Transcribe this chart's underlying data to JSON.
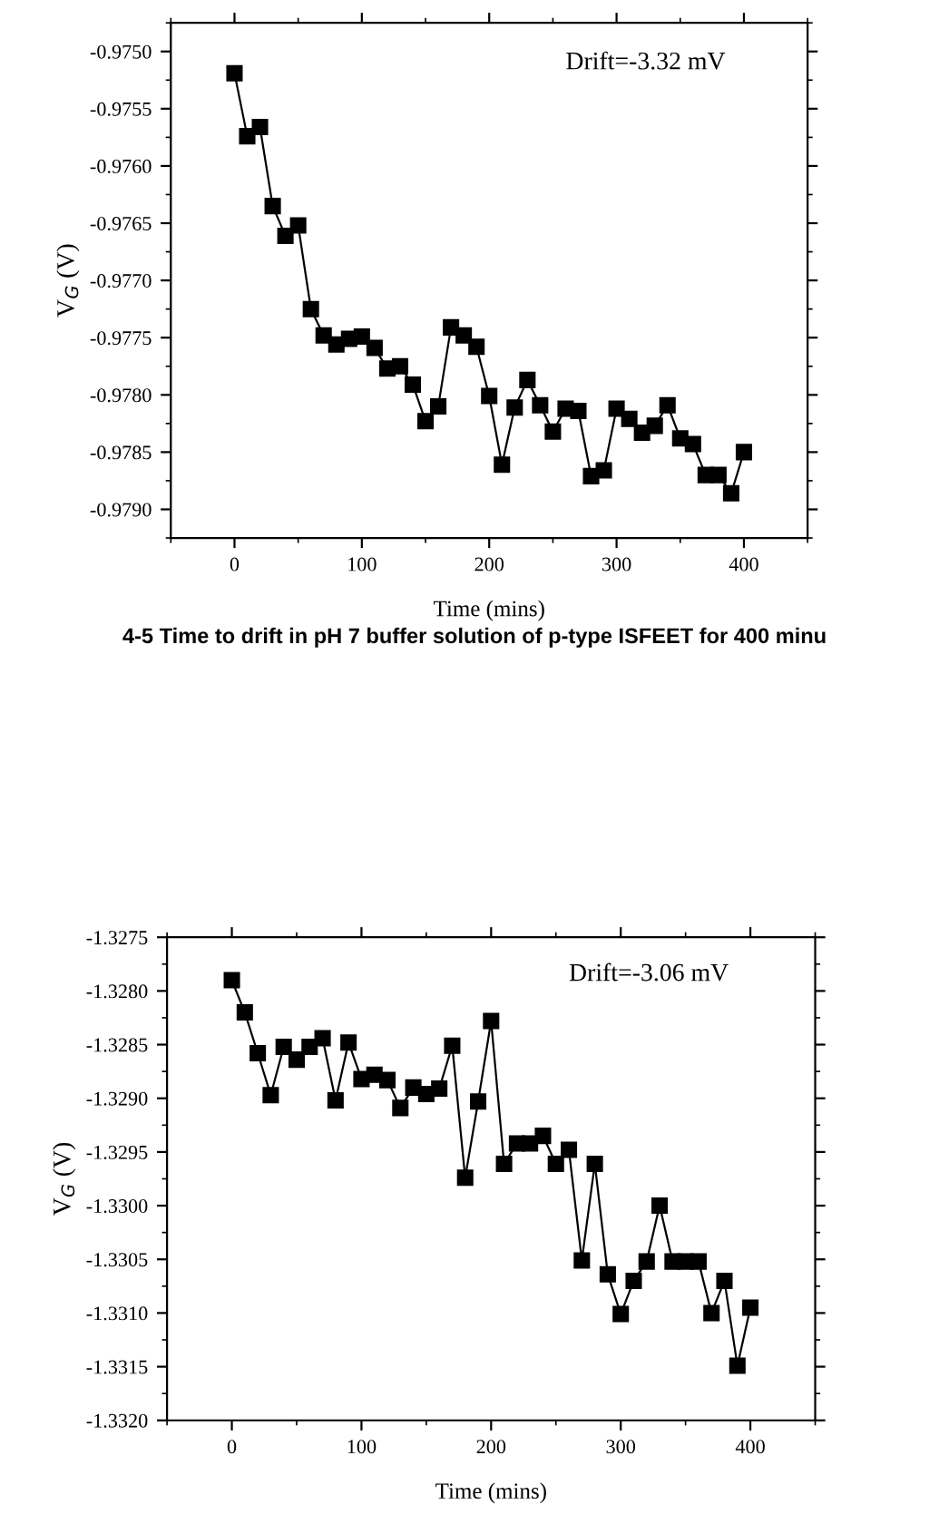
{
  "chart_data": [
    {
      "type": "line",
      "xlabel": "Time (mins)",
      "ylabel": "V$_{G}$ (V)",
      "marker": "square",
      "line_style": "solid",
      "grid": false,
      "legend": false,
      "x": [
        0,
        10,
        20,
        30,
        40,
        50,
        60,
        70,
        80,
        90,
        100,
        110,
        120,
        130,
        140,
        150,
        160,
        170,
        180,
        190,
        200,
        210,
        220,
        230,
        240,
        250,
        260,
        270,
        280,
        290,
        300,
        310,
        320,
        330,
        340,
        350,
        360,
        370,
        380,
        390,
        400
      ],
      "series": [
        {
          "color": "#000000",
          "values": [
            -0.97519,
            -0.97574,
            -0.97566,
            -0.97635,
            -0.97661,
            -0.97652,
            -0.97725,
            -0.97748,
            -0.97756,
            -0.97751,
            -0.97749,
            -0.97759,
            -0.97777,
            -0.97775,
            -0.97791,
            -0.97823,
            -0.9781,
            -0.97741,
            -0.97748,
            -0.97758,
            -0.97801,
            -0.97861,
            -0.97811,
            -0.97787,
            -0.97809,
            -0.97832,
            -0.97812,
            -0.97814,
            -0.97871,
            -0.97866,
            -0.97812,
            -0.97821,
            -0.97833,
            -0.97827,
            -0.97809,
            -0.97838,
            -0.97843,
            -0.9787,
            -0.9787,
            -0.97886,
            -0.9785
          ]
        }
      ],
      "xlim": [
        -50,
        450
      ],
      "xticks": [
        0,
        100,
        200,
        300,
        400
      ],
      "ylim": [
        -0.97925,
        -0.97475
      ],
      "yticks": [
        {
          "value": -0.975,
          "label": "-0.9750"
        },
        {
          "value": -0.9755,
          "label": "-0.9755"
        },
        {
          "value": -0.976,
          "label": "-0.9760"
        },
        {
          "value": -0.9765,
          "label": "-0.9765"
        },
        {
          "value": -0.977,
          "label": "-0.9770"
        },
        {
          "value": -0.9775,
          "label": "-0.9775"
        },
        {
          "value": -0.978,
          "label": "-0.9780"
        },
        {
          "value": -0.9785,
          "label": "-0.9785"
        },
        {
          "value": -0.979,
          "label": "-0.9790"
        }
      ],
      "annotations": [
        "Drift=-3.32 mV",
        "4-5 Time to drift in pH 7 buffer solution of p-type ISFEET for 400 minu"
      ]
    },
    {
      "type": "line",
      "xlabel": "Time (mins)",
      "ylabel": "V$_{G}$ (V)",
      "marker": "square",
      "line_style": "solid",
      "grid": false,
      "legend": false,
      "x": [
        0,
        10,
        20,
        30,
        40,
        50,
        60,
        70,
        80,
        90,
        100,
        110,
        120,
        130,
        140,
        150,
        160,
        170,
        180,
        190,
        200,
        210,
        220,
        230,
        240,
        250,
        260,
        270,
        280,
        290,
        300,
        310,
        320,
        330,
        340,
        350,
        360,
        370,
        380,
        390,
        400
      ],
      "series": [
        {
          "color": "#000000",
          "values": [
            -1.3279,
            -1.3282,
            -1.32858,
            -1.32897,
            -1.32852,
            -1.32864,
            -1.32852,
            -1.32844,
            -1.32902,
            -1.32848,
            -1.32882,
            -1.32878,
            -1.32883,
            -1.32909,
            -1.3289,
            -1.32896,
            -1.32891,
            -1.32851,
            -1.32974,
            -1.32903,
            -1.32828,
            -1.32961,
            -1.32942,
            -1.32942,
            -1.32935,
            -1.32961,
            -1.32948,
            -1.33051,
            -1.32961,
            -1.33064,
            -1.33101,
            -1.3307,
            -1.33052,
            -1.33,
            -1.33052,
            -1.33052,
            -1.33052,
            -1.331,
            -1.3307,
            -1.33149,
            -1.33095
          ]
        }
      ],
      "xlim": [
        -50,
        450
      ],
      "xticks": [
        0,
        100,
        200,
        300,
        400
      ],
      "ylim": [
        -1.332,
        -1.3275
      ],
      "yticks": [
        -1.3275,
        {
          "value": -1.328,
          "label": "-1.3280"
        },
        -1.3285,
        {
          "value": -1.329,
          "label": "-1.3290"
        },
        -1.3295,
        {
          "value": -1.33,
          "label": "-1.3300"
        },
        -1.3305,
        {
          "value": -1.331,
          "label": "-1.3310"
        },
        -1.3315,
        {
          "value": -1.332,
          "label": "-1.3320"
        }
      ],
      "annotations": [
        "Drift=-3.06 mV"
      ]
    }
  ]
}
